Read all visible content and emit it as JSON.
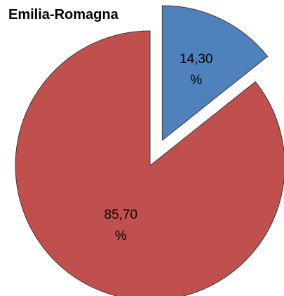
{
  "chart_data": {
    "type": "pie",
    "title": "Emilia-Romagna",
    "values": [
      14.3,
      85.7
    ],
    "value_labels": [
      "14,30 %",
      "85,70 %"
    ],
    "colors": [
      "#4f81bd",
      "#c0504d"
    ],
    "explode": [
      true,
      false
    ]
  }
}
